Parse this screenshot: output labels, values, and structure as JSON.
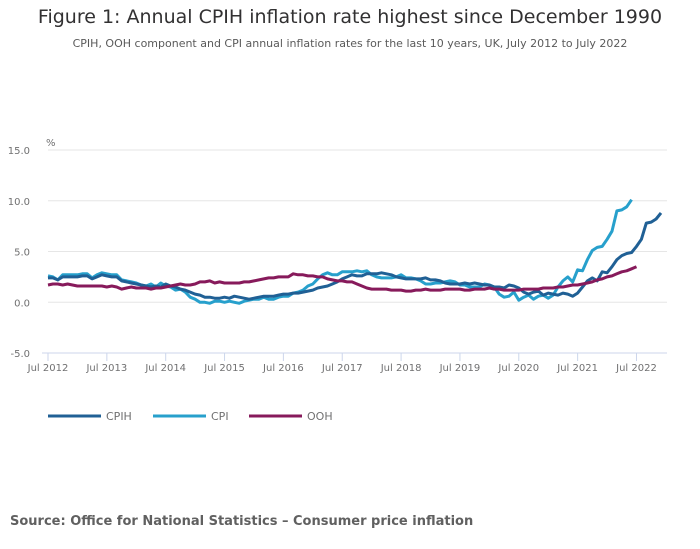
{
  "header": {
    "title": "Figure 1: Annual CPIH inflation rate highest since December 1990",
    "subtitle": "CPIH, OOH component and CPI annual inflation rates for the last 10 years, UK, July 2012 to July 2022"
  },
  "source": "Source: Office for National Statistics – Consumer price inflation",
  "chart_data": {
    "type": "line",
    "title": "Figure 1: Annual CPIH inflation rate highest since December 1990",
    "subtitle": "CPIH, OOH component and CPI annual inflation rates for the last 10 years, UK, July 2012 to July 2022",
    "ylabel": "%",
    "xlabel": "",
    "ylim": [
      -5,
      15
    ],
    "yticks": [
      -5.0,
      0.0,
      5.0,
      10.0,
      15.0
    ],
    "ytick_labels": [
      "-5.0",
      "0.0",
      "5.0",
      "10.0",
      "15.0"
    ],
    "xticks": [
      "Jul 2012",
      "Jul 2013",
      "Jul 2014",
      "Jul 2015",
      "Jul 2016",
      "Jul 2017",
      "Jul 2018",
      "Jul 2019",
      "Jul 2020",
      "Jul 2021",
      "Jul 2022"
    ],
    "x_start": "Jul 2012",
    "x_end": "Jul 2022",
    "frequency": "monthly",
    "grid": true,
    "legend": "bottom-left",
    "series": [
      {
        "name": "CPIH",
        "color": "#206095",
        "values": [
          2.4,
          2.4,
          2.2,
          2.5,
          2.5,
          2.5,
          2.5,
          2.6,
          2.6,
          2.3,
          2.5,
          2.7,
          2.6,
          2.5,
          2.5,
          2.1,
          2.0,
          1.9,
          1.8,
          1.7,
          1.6,
          1.5,
          1.6,
          1.5,
          1.8,
          1.6,
          1.5,
          1.3,
          1.2,
          1.0,
          0.8,
          0.7,
          0.5,
          0.5,
          0.4,
          0.4,
          0.5,
          0.4,
          0.6,
          0.5,
          0.4,
          0.3,
          0.4,
          0.5,
          0.6,
          0.6,
          0.6,
          0.7,
          0.8,
          0.8,
          0.9,
          0.9,
          1.0,
          1.1,
          1.2,
          1.4,
          1.5,
          1.6,
          1.8,
          2.0,
          2.3,
          2.5,
          2.7,
          2.6,
          2.6,
          2.8,
          2.8,
          2.8,
          2.9,
          2.8,
          2.7,
          2.5,
          2.4,
          2.3,
          2.3,
          2.3,
          2.3,
          2.4,
          2.2,
          2.2,
          2.1,
          1.9,
          1.8,
          1.8,
          1.8,
          1.9,
          1.8,
          1.9,
          1.8,
          1.7,
          1.7,
          1.5,
          1.5,
          1.4,
          1.7,
          1.6,
          1.4,
          1.0,
          0.8,
          1.0,
          1.1,
          0.7,
          0.9,
          0.8,
          0.7,
          0.9,
          0.8,
          0.6,
          0.9,
          1.5,
          2.1,
          2.4,
          2.1,
          3.0,
          2.9,
          3.5,
          4.2,
          4.6,
          4.8,
          4.9,
          5.5,
          6.2,
          7.8,
          7.9,
          8.2,
          8.8
        ]
      },
      {
        "name": "CPI",
        "color": "#27a0cc",
        "values": [
          2.6,
          2.5,
          2.2,
          2.7,
          2.7,
          2.7,
          2.7,
          2.8,
          2.8,
          2.4,
          2.7,
          2.9,
          2.8,
          2.7,
          2.7,
          2.2,
          2.1,
          2.0,
          1.9,
          1.7,
          1.6,
          1.8,
          1.5,
          1.9,
          1.6,
          1.5,
          1.2,
          1.3,
          1.0,
          0.5,
          0.3,
          0.0,
          0.0,
          -0.1,
          0.1,
          0.1,
          0.0,
          0.1,
          0.0,
          -0.1,
          0.1,
          0.2,
          0.3,
          0.3,
          0.5,
          0.3,
          0.3,
          0.5,
          0.6,
          0.6,
          0.9,
          1.0,
          1.2,
          1.6,
          1.8,
          2.3,
          2.7,
          2.9,
          2.7,
          2.7,
          3.0,
          3.0,
          3.0,
          3.1,
          3.0,
          3.1,
          2.7,
          2.5,
          2.4,
          2.4,
          2.4,
          2.5,
          2.7,
          2.4,
          2.4,
          2.3,
          2.1,
          1.8,
          1.8,
          1.9,
          1.9,
          2.0,
          2.1,
          2.0,
          1.7,
          1.7,
          1.5,
          1.5,
          1.5,
          1.8,
          1.7,
          1.5,
          0.8,
          0.5,
          0.6,
          1.0,
          0.2,
          0.5,
          0.7,
          0.3,
          0.6,
          0.7,
          0.4,
          0.7,
          1.5,
          2.1,
          2.5,
          2.0,
          3.2,
          3.1,
          4.2,
          5.1,
          5.4,
          5.5,
          6.2,
          7.0,
          9.0,
          9.1,
          9.4,
          10.1
        ]
      },
      {
        "name": "OOH",
        "color": "#871a5b",
        "values": [
          1.7,
          1.8,
          1.8,
          1.7,
          1.8,
          1.7,
          1.6,
          1.6,
          1.6,
          1.6,
          1.6,
          1.6,
          1.5,
          1.6,
          1.5,
          1.3,
          1.4,
          1.5,
          1.4,
          1.4,
          1.4,
          1.3,
          1.4,
          1.4,
          1.5,
          1.6,
          1.7,
          1.8,
          1.7,
          1.7,
          1.8,
          2.0,
          2.0,
          2.1,
          1.9,
          2.0,
          1.9,
          1.9,
          1.9,
          1.9,
          2.0,
          2.0,
          2.1,
          2.2,
          2.3,
          2.4,
          2.4,
          2.5,
          2.5,
          2.5,
          2.8,
          2.7,
          2.7,
          2.6,
          2.6,
          2.5,
          2.5,
          2.3,
          2.2,
          2.1,
          2.1,
          2.0,
          2.0,
          1.8,
          1.6,
          1.4,
          1.3,
          1.3,
          1.3,
          1.3,
          1.2,
          1.2,
          1.2,
          1.1,
          1.1,
          1.2,
          1.2,
          1.3,
          1.2,
          1.2,
          1.2,
          1.3,
          1.3,
          1.3,
          1.3,
          1.2,
          1.2,
          1.3,
          1.3,
          1.3,
          1.4,
          1.3,
          1.3,
          1.2,
          1.2,
          1.2,
          1.2,
          1.3,
          1.3,
          1.3,
          1.3,
          1.4,
          1.4,
          1.4,
          1.5,
          1.5,
          1.6,
          1.7,
          1.7,
          1.8,
          1.9,
          2.0,
          2.2,
          2.3,
          2.5,
          2.6,
          2.8,
          3.0,
          3.1,
          3.3,
          3.5
        ]
      }
    ]
  }
}
